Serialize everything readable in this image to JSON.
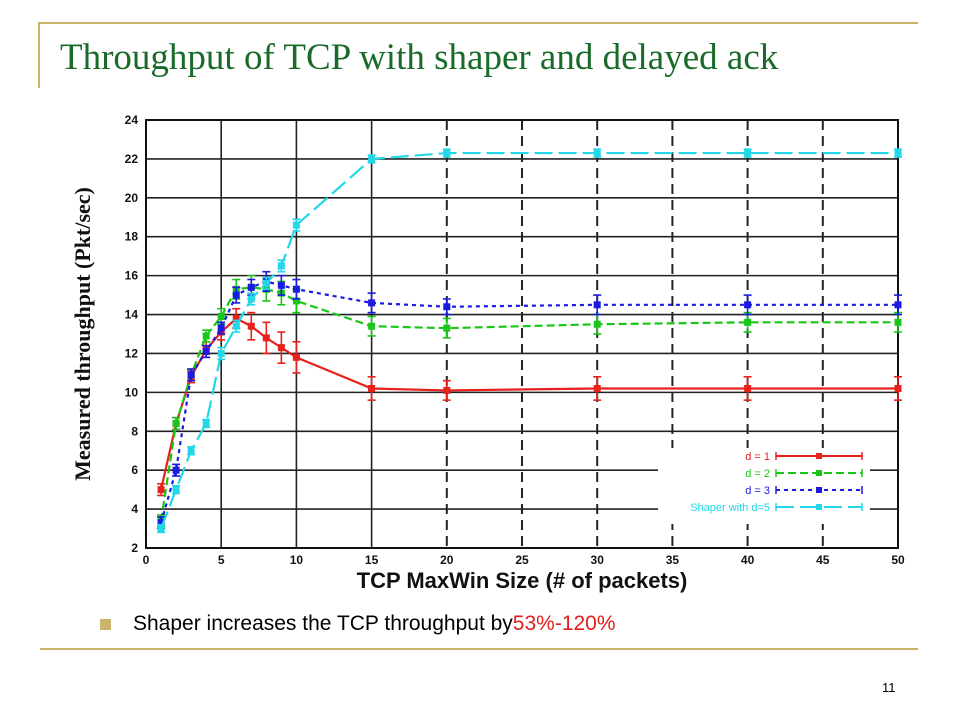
{
  "slide": {
    "title": "Throughput of TCP with shaper and delayed ack",
    "bullet_text": "Shaper increases the TCP throughput by ",
    "bullet_highlight": "53%-120%",
    "page_number": "11"
  },
  "colors": {
    "accent_line": "#c8b46a",
    "title": "#1a6b2a",
    "highlight": "#e0201c"
  },
  "chart_data": {
    "type": "line",
    "title": "",
    "xlabel": "TCP MaxWin Size (# of packets)",
    "ylabel": "Measured throughput (Pkt/sec)",
    "xlim": [
      0,
      50
    ],
    "ylim": [
      2,
      24
    ],
    "xticks": [
      0,
      5,
      10,
      15,
      20,
      25,
      30,
      35,
      40,
      45,
      50
    ],
    "yticks": [
      2,
      4,
      6,
      8,
      10,
      12,
      14,
      16,
      18,
      20,
      22,
      24
    ],
    "grid": true,
    "dashed_vlines": [
      20,
      30,
      35,
      40,
      45
    ],
    "legend_position": "bottom-right",
    "series": [
      {
        "name": "d = 1",
        "color": "#e8211c",
        "x": [
          1,
          2,
          3,
          4,
          5,
          6,
          7,
          8,
          9,
          10,
          15,
          20,
          30,
          40,
          50
        ],
        "y": [
          5.0,
          8.4,
          10.8,
          12.2,
          13.1,
          13.8,
          13.4,
          12.8,
          12.3,
          11.8,
          10.2,
          10.1,
          10.2,
          10.2,
          10.2
        ],
        "err": [
          0.3,
          0.3,
          0.3,
          0.4,
          0.4,
          0.5,
          0.7,
          0.8,
          0.8,
          0.8,
          0.6,
          0.5,
          0.6,
          0.6,
          0.6
        ]
      },
      {
        "name": "d = 2",
        "color": "#19c619",
        "x": [
          1,
          2,
          3,
          4,
          5,
          6,
          7,
          8,
          9,
          10,
          15,
          20,
          30,
          40,
          50
        ],
        "y": [
          3.4,
          8.4,
          10.9,
          12.9,
          13.9,
          15.3,
          15.4,
          15.3,
          15.1,
          14.7,
          13.4,
          13.3,
          13.5,
          13.6,
          13.6
        ],
        "err": [
          0.3,
          0.3,
          0.3,
          0.3,
          0.4,
          0.5,
          0.6,
          0.6,
          0.6,
          0.6,
          0.5,
          0.5,
          0.5,
          0.5,
          0.5
        ]
      },
      {
        "name": "d = 3",
        "color": "#1a1ae0",
        "x": [
          1,
          2,
          3,
          4,
          5,
          6,
          7,
          8,
          9,
          10,
          15,
          20,
          30,
          40,
          50
        ],
        "y": [
          3.3,
          6.0,
          10.9,
          12.1,
          13.3,
          15.0,
          15.4,
          15.7,
          15.5,
          15.3,
          14.6,
          14.4,
          14.5,
          14.5,
          14.5
        ],
        "err": [
          0.3,
          0.3,
          0.3,
          0.3,
          0.3,
          0.4,
          0.4,
          0.5,
          0.5,
          0.5,
          0.5,
          0.4,
          0.5,
          0.5,
          0.5
        ]
      },
      {
        "name": "Shaper with d=5",
        "color": "#22d8e8",
        "x": [
          1,
          2,
          3,
          4,
          5,
          6,
          7,
          8,
          9,
          10,
          15,
          20,
          30,
          40,
          50
        ],
        "y": [
          3.0,
          5.0,
          7.0,
          8.4,
          12.0,
          13.4,
          14.8,
          15.6,
          16.5,
          18.6,
          22.0,
          22.3,
          22.3,
          22.3,
          22.3
        ],
        "err": [
          0.2,
          0.2,
          0.2,
          0.2,
          0.3,
          0.3,
          0.3,
          0.3,
          0.3,
          0.3,
          0.2,
          0.2,
          0.2,
          0.2,
          0.2
        ]
      }
    ]
  }
}
